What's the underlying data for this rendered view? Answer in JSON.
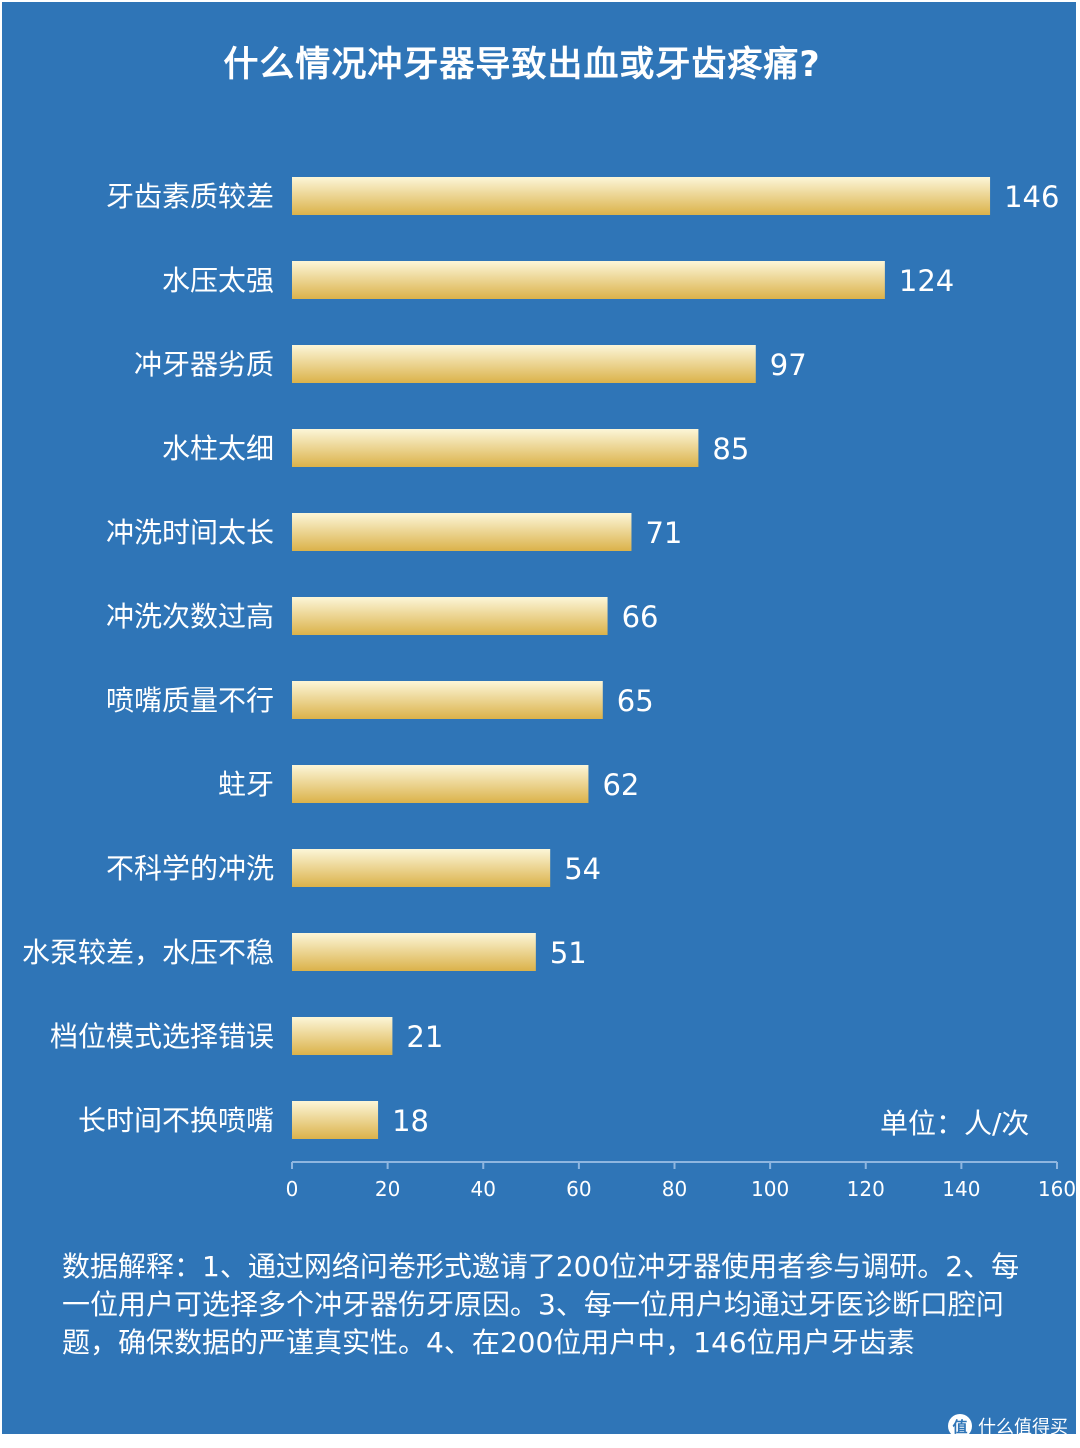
{
  "chart_data": {
    "type": "bar",
    "orientation": "horizontal",
    "title": "什么情况冲牙器导致出血或牙齿疼痛?",
    "categories": [
      "牙齿素质较差",
      "水压太强",
      "冲牙器劣质",
      "水柱太细",
      "冲洗时间太长",
      "冲洗次数过高",
      "喷嘴质量不行",
      "蛀牙",
      "不科学的冲洗",
      "水泵较差，水压不稳",
      "档位模式选择错误",
      "长时间不换喷嘴"
    ],
    "values": [
      146,
      124,
      97,
      85,
      71,
      66,
      65,
      62,
      54,
      51,
      21,
      18
    ],
    "xlim": [
      0,
      160
    ],
    "xticks": [
      0,
      20,
      40,
      60,
      80,
      100,
      120,
      140,
      160
    ],
    "unit": "单位：人/次",
    "grid": false,
    "legend": "none",
    "colors": {
      "background": "#2f75b7",
      "bar_top": "#fcf6d8",
      "bar_bottom": "#dbb24a",
      "text": "#ffffff",
      "axis": "#8fb6e0"
    }
  },
  "note": "数据解释：1、通过网络问卷形式邀请了200位冲牙器使用者参与调研。2、每一位用户可选择多个冲牙器伤牙原因。3、每一位用户均通过牙医诊断口腔问题，确保数据的严谨真实性。4、在200位用户中，146位用户牙齿素",
  "watermark": {
    "logo": "值",
    "text": "什么值得买"
  }
}
